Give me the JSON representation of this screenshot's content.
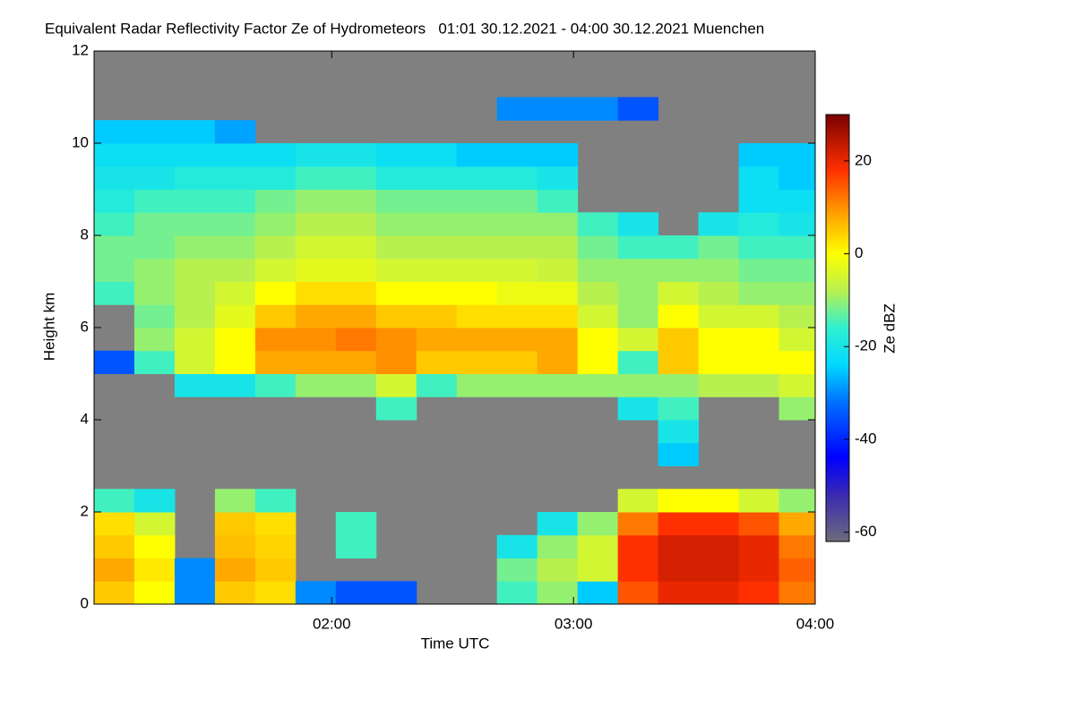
{
  "chart_data": {
    "type": "heatmap",
    "title": "Equivalent Radar Reflectivity Factor Ze of Hydrometeors   01:01 30.12.2021 - 04:00 30.12.2021 Muenchen",
    "xlabel": "Time UTC",
    "ylabel": "Height km",
    "colorbar_label": "Ze dBZ",
    "xlim": [
      61,
      240
    ],
    "xticks": [
      {
        "value": 120,
        "label": "02:00"
      },
      {
        "value": 180,
        "label": "03:00"
      },
      {
        "value": 240,
        "label": "04:00"
      }
    ],
    "ylim": [
      0,
      12
    ],
    "yticks": [
      0,
      2,
      4,
      6,
      8,
      10,
      12
    ],
    "clim": [
      -62,
      30
    ],
    "cticks": [
      -60,
      -40,
      -20,
      0,
      20
    ],
    "nodata_color": "#808080",
    "colorscale": [
      {
        "value": -62,
        "color": "#6c6c7c"
      },
      {
        "value": -52,
        "color": "#3a2ab0"
      },
      {
        "value": -44,
        "color": "#0000ff"
      },
      {
        "value": -32,
        "color": "#0070ff"
      },
      {
        "value": -24,
        "color": "#00d8ff"
      },
      {
        "value": -16,
        "color": "#30f0d0"
      },
      {
        "value": -8,
        "color": "#b8f050"
      },
      {
        "value": 0,
        "color": "#ffff00"
      },
      {
        "value": 8,
        "color": "#ffa800"
      },
      {
        "value": 18,
        "color": "#ff3000"
      },
      {
        "value": 30,
        "color": "#7a0000"
      }
    ],
    "x_bins": [
      61,
      71,
      81,
      91,
      101,
      111,
      121,
      131,
      141,
      151,
      161,
      171,
      181,
      191,
      201,
      211,
      221,
      231,
      240
    ],
    "y_bins": [
      0,
      0.5,
      1,
      1.5,
      2,
      2.5,
      3,
      3.5,
      4,
      4.5,
      5,
      5.5,
      6,
      6.5,
      7,
      7.5,
      8,
      8.5,
      9,
      9.5,
      10,
      10.5,
      11,
      11.5,
      12
    ],
    "values": [
      [
        5,
        0,
        -30,
        5,
        3,
        -30,
        -35,
        -35,
        null,
        null,
        -15,
        -10,
        -25,
        15,
        20,
        20,
        18,
        12
      ],
      [
        8,
        2,
        -30,
        8,
        5,
        null,
        null,
        null,
        null,
        null,
        -12,
        -8,
        -5,
        18,
        22,
        22,
        20,
        14
      ],
      [
        5,
        0,
        null,
        6,
        4,
        null,
        -15,
        null,
        null,
        null,
        -20,
        -10,
        -5,
        18,
        22,
        22,
        20,
        12
      ],
      [
        3,
        -5,
        null,
        5,
        3,
        null,
        -15,
        null,
        null,
        null,
        null,
        -20,
        -10,
        12,
        18,
        18,
        15,
        8
      ],
      [
        -15,
        -20,
        null,
        -10,
        -15,
        null,
        null,
        null,
        null,
        null,
        null,
        null,
        null,
        -5,
        0,
        0,
        -5,
        -10
      ],
      [
        null,
        null,
        null,
        null,
        null,
        null,
        null,
        null,
        null,
        null,
        null,
        null,
        null,
        null,
        null,
        null,
        null,
        null
      ],
      [
        null,
        null,
        null,
        null,
        null,
        null,
        null,
        null,
        null,
        null,
        null,
        null,
        null,
        null,
        -25,
        null,
        null,
        null
      ],
      [
        null,
        null,
        null,
        null,
        null,
        null,
        null,
        null,
        null,
        null,
        null,
        null,
        null,
        null,
        -20,
        null,
        null,
        null
      ],
      [
        null,
        null,
        null,
        null,
        null,
        null,
        null,
        -15,
        null,
        null,
        null,
        null,
        null,
        -20,
        -15,
        null,
        null,
        -10
      ],
      [
        null,
        null,
        -20,
        -20,
        -15,
        -10,
        -10,
        -5,
        -15,
        -10,
        -10,
        -10,
        -10,
        -10,
        -10,
        -8,
        -8,
        -5
      ],
      [
        -35,
        -15,
        -5,
        0,
        8,
        8,
        8,
        10,
        5,
        5,
        5,
        8,
        0,
        -15,
        5,
        0,
        0,
        0
      ],
      [
        null,
        -10,
        -5,
        0,
        10,
        10,
        12,
        10,
        8,
        8,
        8,
        8,
        0,
        -5,
        5,
        0,
        0,
        -5
      ],
      [
        null,
        -12,
        -8,
        -3,
        5,
        8,
        8,
        5,
        5,
        3,
        3,
        3,
        -5,
        -10,
        0,
        -5,
        -5,
        -8
      ],
      [
        -15,
        -10,
        -8,
        -5,
        0,
        3,
        3,
        0,
        0,
        0,
        -2,
        -2,
        -8,
        -10,
        -5,
        -8,
        -10,
        -10
      ],
      [
        -12,
        -10,
        -8,
        -8,
        -5,
        -3,
        -3,
        -5,
        -5,
        -5,
        -5,
        -6,
        -10,
        -10,
        -10,
        -10,
        -12,
        -12
      ],
      [
        -12,
        -12,
        -10,
        -10,
        -8,
        -5,
        -5,
        -8,
        -8,
        -8,
        -8,
        -8,
        -12,
        -15,
        -15,
        -12,
        -15,
        -15
      ],
      [
        -15,
        -12,
        -12,
        -12,
        -10,
        -8,
        -8,
        -10,
        -10,
        -10,
        -10,
        -10,
        -15,
        -20,
        null,
        -20,
        -18,
        -20
      ],
      [
        -18,
        -15,
        -15,
        -15,
        -12,
        -10,
        -10,
        -12,
        -12,
        -12,
        -12,
        -15,
        null,
        null,
        null,
        null,
        -22,
        -22
      ],
      [
        -20,
        -20,
        -18,
        -18,
        -18,
        -15,
        -15,
        -18,
        -18,
        -18,
        -18,
        -20,
        null,
        null,
        null,
        null,
        -22,
        -25
      ],
      [
        -22,
        -22,
        -22,
        -22,
        -22,
        -20,
        -20,
        -22,
        -22,
        -25,
        -25,
        -25,
        null,
        null,
        null,
        null,
        -25,
        -25
      ],
      [
        -25,
        -25,
        -25,
        -28,
        null,
        null,
        null,
        null,
        null,
        null,
        null,
        null,
        null,
        null,
        null,
        null,
        null,
        null
      ],
      [
        null,
        null,
        null,
        null,
        null,
        null,
        null,
        null,
        null,
        null,
        -30,
        -30,
        -30,
        -35,
        null,
        null,
        null,
        null
      ],
      [
        null,
        null,
        null,
        null,
        null,
        null,
        null,
        null,
        null,
        null,
        null,
        null,
        null,
        null,
        null,
        null,
        null,
        null
      ],
      [
        null,
        null,
        null,
        null,
        null,
        null,
        null,
        null,
        null,
        null,
        null,
        null,
        null,
        null,
        null,
        null,
        null,
        null
      ]
    ]
  }
}
